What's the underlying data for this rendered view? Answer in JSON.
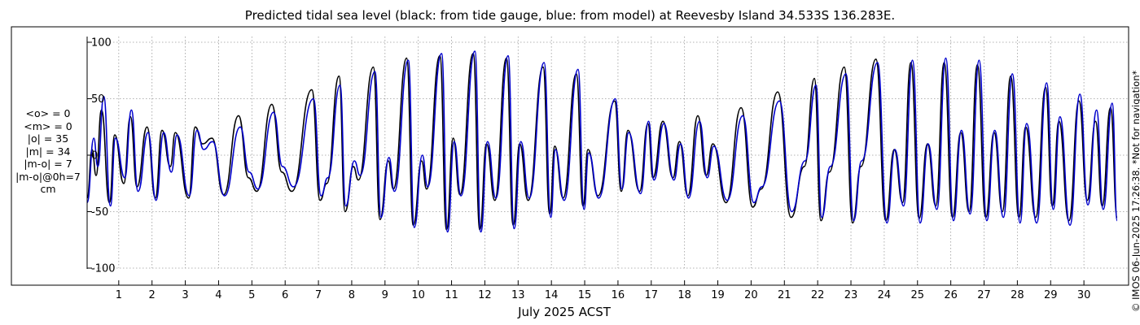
{
  "chart_data": {
    "type": "line",
    "title": "Predicted tidal sea level (black: from tide gauge, blue: from model) at Reevesby Island 34.533S 136.283E.",
    "xlabel": "July 2025 ACST",
    "ylabel": "",
    "xlim": [
      0.05,
      31.0
    ],
    "ylim": [
      -105,
      105
    ],
    "y_ticks": [
      -100,
      -50,
      0,
      50,
      100
    ],
    "x_ticks": [
      1,
      2,
      3,
      4,
      5,
      6,
      7,
      8,
      9,
      10,
      11,
      12,
      13,
      14,
      15,
      16,
      17,
      18,
      19,
      20,
      21,
      22,
      23,
      24,
      25,
      26,
      27,
      28,
      29,
      30
    ],
    "grid": true,
    "series": [
      {
        "name": "tide gauge",
        "color": "#000000",
        "points": [
          [
            0.05,
            -38
          ],
          [
            0.2,
            5
          ],
          [
            0.32,
            -18
          ],
          [
            0.48,
            40
          ],
          [
            0.72,
            -42
          ],
          [
            0.88,
            18
          ],
          [
            1.15,
            -25
          ],
          [
            1.35,
            34
          ],
          [
            1.55,
            -28
          ],
          [
            1.85,
            25
          ],
          [
            2.1,
            -38
          ],
          [
            2.3,
            22
          ],
          [
            2.55,
            -10
          ],
          [
            2.7,
            20
          ],
          [
            3.1,
            -38
          ],
          [
            3.3,
            25
          ],
          [
            3.52,
            10
          ],
          [
            3.8,
            15
          ],
          [
            4.15,
            -35
          ],
          [
            4.6,
            35
          ],
          [
            4.9,
            -20
          ],
          [
            5.15,
            -32
          ],
          [
            5.6,
            45
          ],
          [
            5.9,
            -15
          ],
          [
            6.2,
            -32
          ],
          [
            6.8,
            58
          ],
          [
            7.05,
            -40
          ],
          [
            7.25,
            -25
          ],
          [
            7.62,
            70
          ],
          [
            7.8,
            -50
          ],
          [
            8.05,
            -10
          ],
          [
            8.2,
            -22
          ],
          [
            8.65,
            78
          ],
          [
            8.85,
            -57
          ],
          [
            9.1,
            -5
          ],
          [
            9.25,
            -30
          ],
          [
            9.65,
            86
          ],
          [
            9.85,
            -62
          ],
          [
            10.1,
            -5
          ],
          [
            10.25,
            -30
          ],
          [
            10.65,
            88
          ],
          [
            10.85,
            -66
          ],
          [
            11.05,
            15
          ],
          [
            11.25,
            -35
          ],
          [
            11.65,
            90
          ],
          [
            11.85,
            -66
          ],
          [
            12.05,
            10
          ],
          [
            12.3,
            -40
          ],
          [
            12.65,
            86
          ],
          [
            12.85,
            -62
          ],
          [
            13.05,
            10
          ],
          [
            13.3,
            -40
          ],
          [
            13.75,
            78
          ],
          [
            13.95,
            -52
          ],
          [
            14.1,
            8
          ],
          [
            14.35,
            -38
          ],
          [
            14.75,
            72
          ],
          [
            14.95,
            -45
          ],
          [
            15.1,
            5
          ],
          [
            15.4,
            -36
          ],
          [
            15.9,
            48
          ],
          [
            16.1,
            -32
          ],
          [
            16.3,
            22
          ],
          [
            16.65,
            -32
          ],
          [
            16.9,
            28
          ],
          [
            17.05,
            -20
          ],
          [
            17.35,
            30
          ],
          [
            17.65,
            -20
          ],
          [
            17.85,
            12
          ],
          [
            18.1,
            -36
          ],
          [
            18.4,
            35
          ],
          [
            18.65,
            -18
          ],
          [
            18.85,
            10
          ],
          [
            19.25,
            -42
          ],
          [
            19.7,
            42
          ],
          [
            20.05,
            -46
          ],
          [
            20.3,
            -30
          ],
          [
            20.8,
            56
          ],
          [
            21.2,
            -55
          ],
          [
            21.6,
            -10
          ],
          [
            21.9,
            68
          ],
          [
            22.1,
            -58
          ],
          [
            22.35,
            -15
          ],
          [
            22.8,
            78
          ],
          [
            23.05,
            -60
          ],
          [
            23.3,
            -10
          ],
          [
            23.75,
            85
          ],
          [
            24.05,
            -58
          ],
          [
            24.3,
            5
          ],
          [
            24.55,
            -42
          ],
          [
            24.8,
            82
          ],
          [
            25.05,
            -56
          ],
          [
            25.3,
            10
          ],
          [
            25.55,
            -45
          ],
          [
            25.8,
            82
          ],
          [
            26.05,
            -55
          ],
          [
            26.3,
            20
          ],
          [
            26.55,
            -50
          ],
          [
            26.8,
            80
          ],
          [
            27.05,
            -55
          ],
          [
            27.3,
            20
          ],
          [
            27.55,
            -50
          ],
          [
            27.8,
            70
          ],
          [
            28.05,
            -55
          ],
          [
            28.25,
            25
          ],
          [
            28.55,
            -55
          ],
          [
            28.85,
            60
          ],
          [
            29.05,
            -45
          ],
          [
            29.25,
            30
          ],
          [
            29.55,
            -58
          ],
          [
            29.85,
            48
          ],
          [
            30.1,
            -40
          ],
          [
            30.35,
            30
          ],
          [
            30.55,
            -45
          ],
          [
            30.8,
            42
          ],
          [
            31.0,
            -55
          ]
        ]
      },
      {
        "name": "model",
        "color": "#0000cc",
        "points": [
          [
            0.05,
            -42
          ],
          [
            0.25,
            15
          ],
          [
            0.37,
            -10
          ],
          [
            0.55,
            52
          ],
          [
            0.75,
            -45
          ],
          [
            0.9,
            15
          ],
          [
            1.18,
            -20
          ],
          [
            1.38,
            40
          ],
          [
            1.58,
            -32
          ],
          [
            1.88,
            20
          ],
          [
            2.12,
            -40
          ],
          [
            2.35,
            20
          ],
          [
            2.58,
            -15
          ],
          [
            2.75,
            18
          ],
          [
            3.12,
            -36
          ],
          [
            3.35,
            22
          ],
          [
            3.55,
            5
          ],
          [
            3.82,
            12
          ],
          [
            4.18,
            -36
          ],
          [
            4.65,
            25
          ],
          [
            4.92,
            -15
          ],
          [
            5.18,
            -30
          ],
          [
            5.65,
            38
          ],
          [
            5.92,
            -10
          ],
          [
            6.25,
            -28
          ],
          [
            6.85,
            50
          ],
          [
            7.08,
            -36
          ],
          [
            7.28,
            -20
          ],
          [
            7.65,
            62
          ],
          [
            7.82,
            -45
          ],
          [
            8.08,
            -5
          ],
          [
            8.25,
            -18
          ],
          [
            8.7,
            74
          ],
          [
            8.88,
            -55
          ],
          [
            9.12,
            -2
          ],
          [
            9.28,
            -32
          ],
          [
            9.7,
            84
          ],
          [
            9.88,
            -64
          ],
          [
            10.12,
            0
          ],
          [
            10.28,
            -28
          ],
          [
            10.7,
            90
          ],
          [
            10.88,
            -68
          ],
          [
            11.08,
            12
          ],
          [
            11.28,
            -36
          ],
          [
            11.7,
            92
          ],
          [
            11.88,
            -68
          ],
          [
            12.08,
            12
          ],
          [
            12.33,
            -38
          ],
          [
            12.7,
            88
          ],
          [
            12.88,
            -65
          ],
          [
            13.08,
            12
          ],
          [
            13.33,
            -38
          ],
          [
            13.78,
            82
          ],
          [
            13.98,
            -55
          ],
          [
            14.12,
            5
          ],
          [
            14.38,
            -40
          ],
          [
            14.8,
            76
          ],
          [
            14.98,
            -48
          ],
          [
            15.12,
            2
          ],
          [
            15.42,
            -38
          ],
          [
            15.92,
            50
          ],
          [
            16.12,
            -30
          ],
          [
            16.32,
            20
          ],
          [
            16.68,
            -34
          ],
          [
            16.92,
            30
          ],
          [
            17.08,
            -22
          ],
          [
            17.38,
            28
          ],
          [
            17.68,
            -22
          ],
          [
            17.88,
            10
          ],
          [
            18.12,
            -38
          ],
          [
            18.45,
            30
          ],
          [
            18.68,
            -20
          ],
          [
            18.88,
            8
          ],
          [
            19.28,
            -40
          ],
          [
            19.75,
            35
          ],
          [
            20.08,
            -42
          ],
          [
            20.32,
            -28
          ],
          [
            20.85,
            48
          ],
          [
            21.22,
            -50
          ],
          [
            21.62,
            -5
          ],
          [
            21.95,
            62
          ],
          [
            22.12,
            -55
          ],
          [
            22.38,
            -10
          ],
          [
            22.85,
            72
          ],
          [
            23.08,
            -58
          ],
          [
            23.32,
            -5
          ],
          [
            23.8,
            82
          ],
          [
            24.08,
            -60
          ],
          [
            24.32,
            5
          ],
          [
            24.58,
            -45
          ],
          [
            24.85,
            84
          ],
          [
            25.08,
            -60
          ],
          [
            25.32,
            10
          ],
          [
            25.58,
            -48
          ],
          [
            25.85,
            86
          ],
          [
            26.08,
            -58
          ],
          [
            26.32,
            22
          ],
          [
            26.58,
            -52
          ],
          [
            26.85,
            84
          ],
          [
            27.08,
            -58
          ],
          [
            27.32,
            22
          ],
          [
            27.58,
            -55
          ],
          [
            27.85,
            72
          ],
          [
            28.08,
            -60
          ],
          [
            28.28,
            28
          ],
          [
            28.58,
            -60
          ],
          [
            28.88,
            64
          ],
          [
            29.08,
            -48
          ],
          [
            29.28,
            34
          ],
          [
            29.58,
            -62
          ],
          [
            29.88,
            54
          ],
          [
            30.12,
            -44
          ],
          [
            30.38,
            40
          ],
          [
            30.58,
            -48
          ],
          [
            30.85,
            46
          ],
          [
            31.0,
            -58
          ]
        ]
      }
    ]
  },
  "stats": {
    "mean_obs": "<o> = 0",
    "mean_model": "<m> = 0",
    "abs_obs": "|o| = 35",
    "abs_model": "|m| = 34",
    "abs_diff": "|m-o| = 7",
    "abs_diff_0h": "|m-o|@0h=7",
    "unit": "cm"
  },
  "copyright": "© IMOS 06-Jun-2025 17:26:38. *Not for navigation*"
}
